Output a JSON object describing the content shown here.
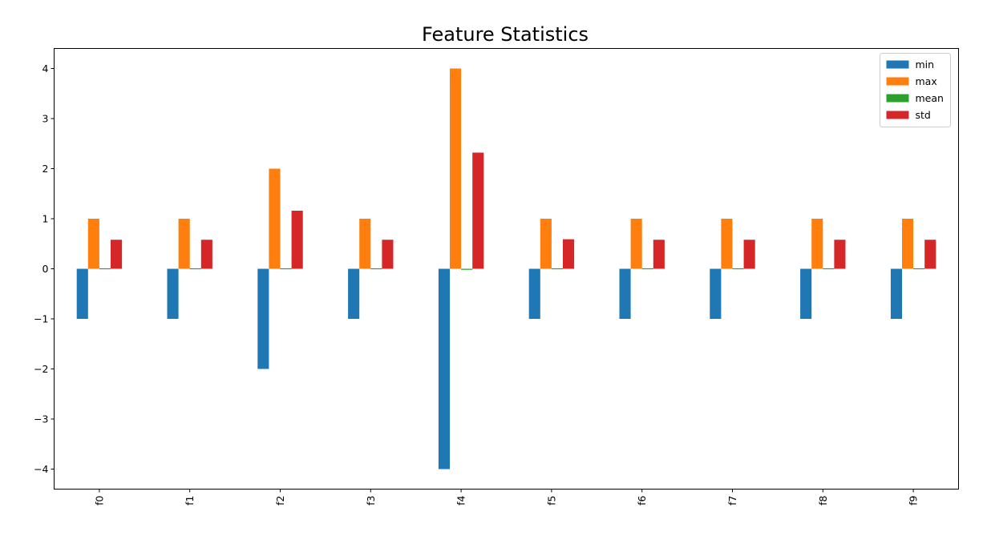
{
  "chart_data": {
    "type": "bar",
    "title": "Feature Statistics",
    "xlabel": "",
    "ylabel": "",
    "categories": [
      "f0",
      "f1",
      "f2",
      "f3",
      "f4",
      "f5",
      "f6",
      "f7",
      "f8",
      "f9"
    ],
    "series": [
      {
        "name": "min",
        "color": "#1f77b4",
        "values": [
          -1,
          -1,
          -2,
          -1,
          -4,
          -1,
          -1,
          -1,
          -1,
          -1
        ]
      },
      {
        "name": "max",
        "color": "#ff7f0e",
        "values": [
          1,
          1,
          2,
          1,
          4,
          1,
          1,
          1,
          1,
          1
        ]
      },
      {
        "name": "mean",
        "color": "#2ca02c",
        "values": [
          0,
          0,
          0,
          0,
          -0.02,
          0,
          0.01,
          0,
          0,
          0
        ]
      },
      {
        "name": "std",
        "color": "#d62728",
        "values": [
          0.58,
          0.58,
          1.16,
          0.58,
          2.32,
          0.59,
          0.58,
          0.58,
          0.58,
          0.58
        ]
      }
    ],
    "ylim": [
      -4.4,
      4.4
    ],
    "yticks": [
      4,
      3,
      2,
      1,
      0,
      -1,
      -2,
      -3,
      -4
    ],
    "ytick_labels": [
      "4",
      "3",
      "2",
      "1",
      "0",
      "−1",
      "−2",
      "−3",
      "−4"
    ],
    "xtick_rotation": "vertical",
    "grid": false,
    "legend_position": "top-right"
  }
}
